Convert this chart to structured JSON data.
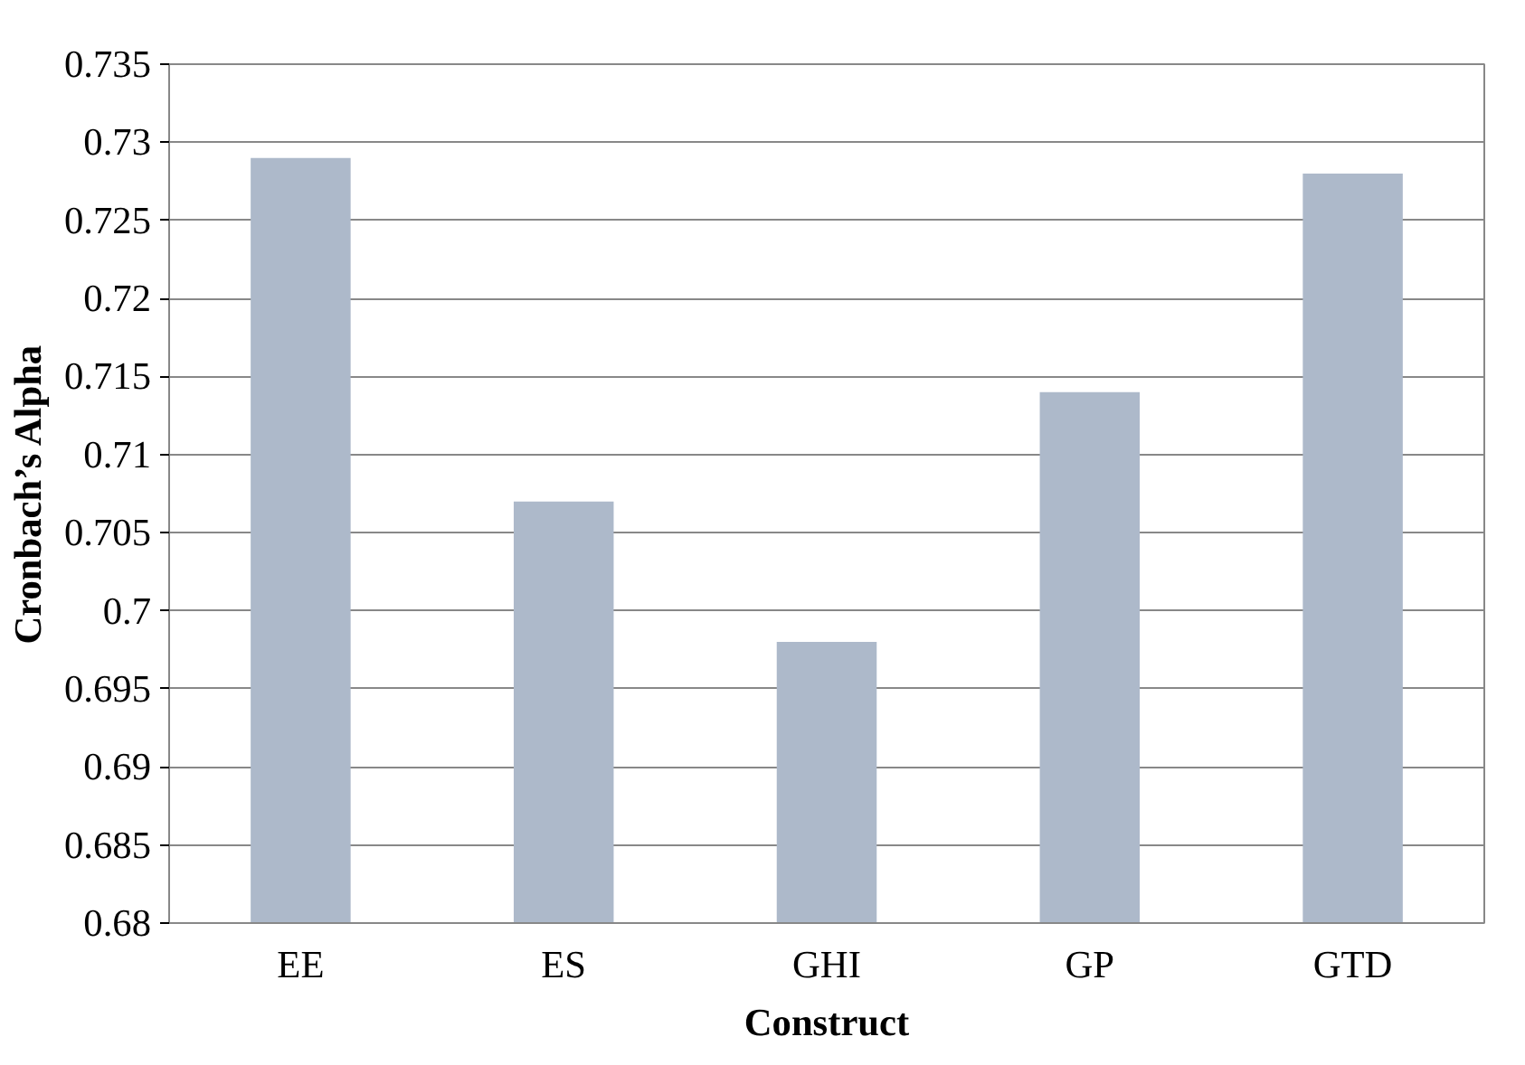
{
  "chart_data": {
    "type": "bar",
    "categories": [
      "EE",
      "ES",
      "GHI",
      "GP",
      "GTD"
    ],
    "values": [
      0.729,
      0.707,
      0.698,
      0.714,
      0.728
    ],
    "color": "#adb9ca",
    "xlabel": "Construct",
    "ylabel": "Cronbach’s Alpha",
    "ylim": [
      0.68,
      0.735
    ],
    "yticks": [
      {
        "value": 0.68,
        "label": "0.68"
      },
      {
        "value": 0.685,
        "label": "0.685"
      },
      {
        "value": 0.69,
        "label": "0.69"
      },
      {
        "value": 0.695,
        "label": "0.695"
      },
      {
        "value": 0.7,
        "label": "0.7"
      },
      {
        "value": 0.705,
        "label": "0.705"
      },
      {
        "value": 0.71,
        "label": "0.71"
      },
      {
        "value": 0.715,
        "label": "0.715"
      },
      {
        "value": 0.72,
        "label": "0.72"
      },
      {
        "value": 0.725,
        "label": "0.725"
      },
      {
        "value": 0.73,
        "label": "0.73"
      },
      {
        "value": 0.735,
        "label": "0.735"
      }
    ],
    "grid": "y"
  }
}
